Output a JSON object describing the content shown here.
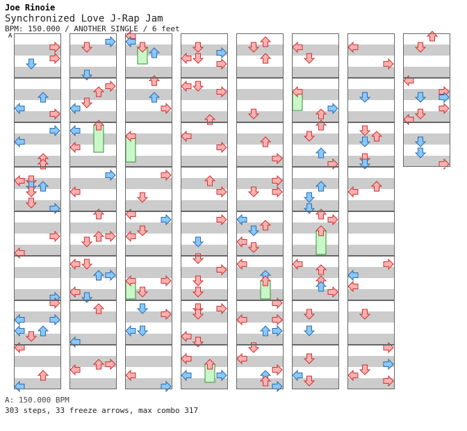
{
  "header": {
    "artist": "Joe Rinoie",
    "title": "Synchronized Love J-Rap Jam",
    "info": "BPM: 150.000 / ANOTHER SINGLE / 6 feet",
    "bpm_marker": "A"
  },
  "footer": {
    "bpm_line": "A: 150.000 BPM",
    "summary": "303 steps, 33 freeze arrows, max combo 317"
  },
  "colors": {
    "stripe": "#cccccc",
    "border": "#666666",
    "red_fill": "#ffb0b0",
    "red_stroke": "#c83232",
    "blue_fill": "#88c8ff",
    "blue_stroke": "#2c6aa8",
    "freeze_fill": "#c8f7c8",
    "freeze_stroke": "#3a8a3a"
  },
  "chart_data": {
    "type": "step-chart",
    "columns": 8,
    "measures_per_column": 8,
    "lanes": [
      "left",
      "down",
      "up",
      "right"
    ],
    "seed": 90210,
    "step_count": 303,
    "freeze_count": 33,
    "max_combo": 317,
    "bpm": 150.0,
    "difficulty": "ANOTHER SINGLE",
    "feet": 6
  }
}
